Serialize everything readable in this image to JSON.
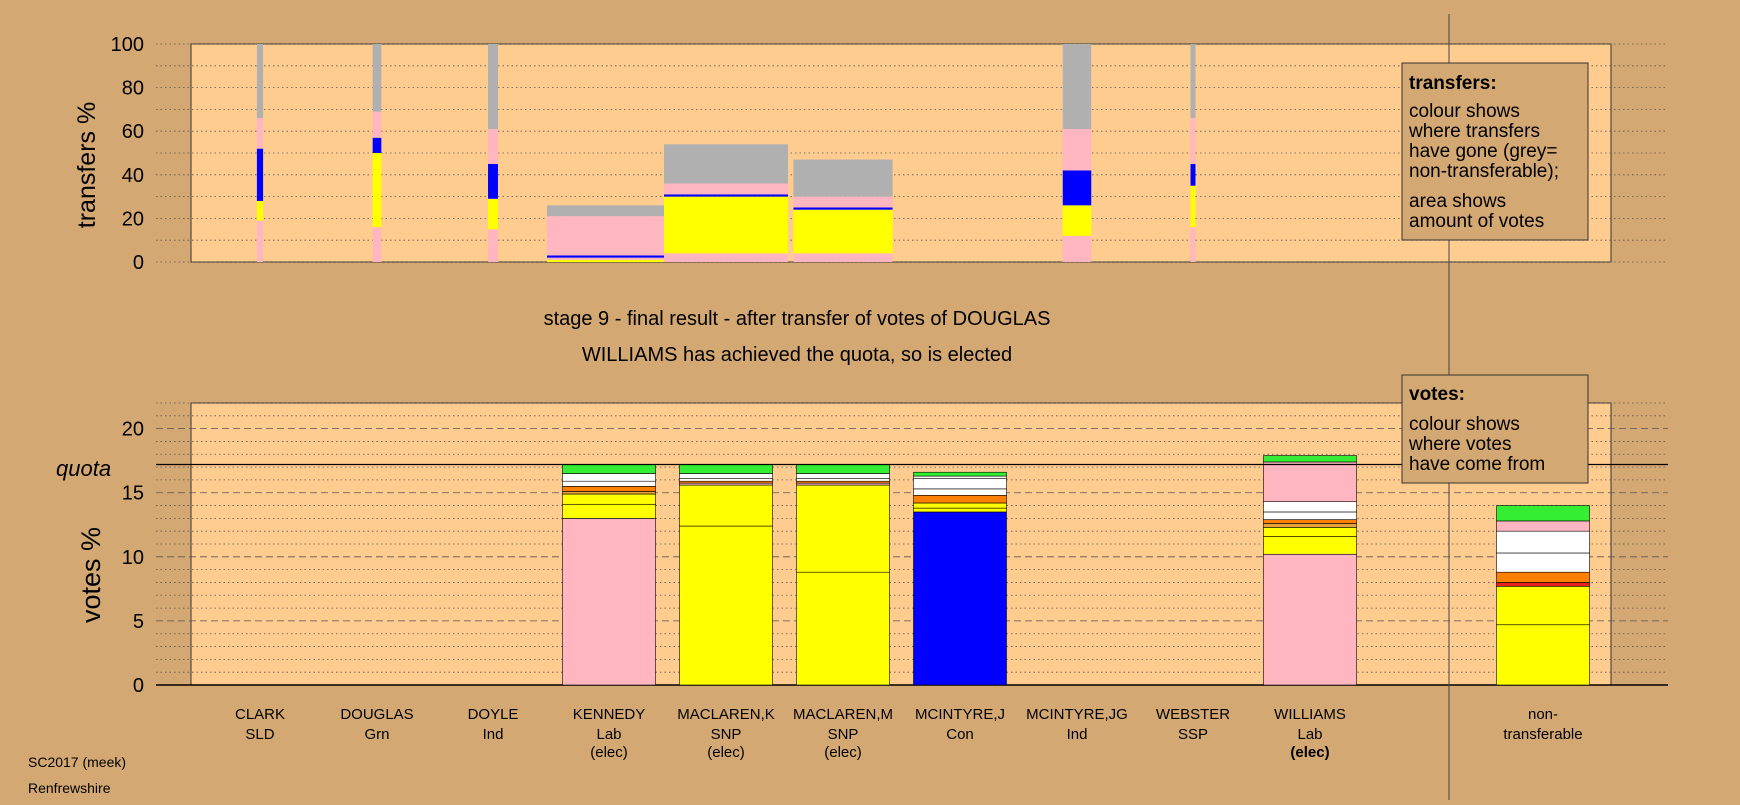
{
  "chart_data": [
    {
      "type": "bar",
      "ylabel": "transfers %",
      "ylim": [
        0,
        100
      ],
      "yticks": [
        0,
        20,
        40,
        60,
        80,
        100
      ],
      "grid": true,
      "categories": [
        "CLARK",
        "DOUGLAS",
        "DOYLE",
        "KENNEDY",
        "MACLAREN,K",
        "MACLAREN,M",
        "MCINTYRE,J",
        "MCINTYRE,JG",
        "WEBSTER",
        "WILLIAMS"
      ],
      "bars": [
        {
          "candidate": "CLARK",
          "width_share": 0.05,
          "segments": [
            {
              "color": "#ffb6c1",
              "to": 19
            },
            {
              "color": "#ffff00",
              "to": 28
            },
            {
              "color": "#0000ff",
              "to": 52
            },
            {
              "color": "#ffb6c1",
              "to": 66
            },
            {
              "color": "#b0b0b0",
              "to": 100
            }
          ]
        },
        {
          "candidate": "DOUGLAS",
          "width_share": 0.07,
          "segments": [
            {
              "color": "#ffb6c1",
              "to": 16
            },
            {
              "color": "#ffff00",
              "to": 50
            },
            {
              "color": "#0000ff",
              "to": 57
            },
            {
              "color": "#ffb6c1",
              "to": 69
            },
            {
              "color": "#b0b0b0",
              "to": 100
            }
          ]
        },
        {
          "candidate": "DOYLE",
          "width_share": 0.08,
          "segments": [
            {
              "color": "#ffb6c1",
              "to": 15
            },
            {
              "color": "#ffff00",
              "to": 29
            },
            {
              "color": "#0000ff",
              "to": 45
            },
            {
              "color": "#ffb6c1",
              "to": 61
            },
            {
              "color": "#b0b0b0",
              "to": 100
            }
          ]
        },
        {
          "candidate": "KENNEDY",
          "width_share": 1.0,
          "segments": [
            {
              "color": "#ffff00",
              "to": 1
            },
            {
              "color": "#ffb6c1",
              "to": 2
            },
            {
              "color": "#0000ff",
              "to": 3
            },
            {
              "color": "#ffb6c1",
              "to": 21
            },
            {
              "color": "#b0b0b0",
              "to": 26
            }
          ]
        },
        {
          "candidate": "MACLAREN,K",
          "width_share": 1.0,
          "segments": [
            {
              "color": "#ffb6c1",
              "to": 4
            },
            {
              "color": "#ffff00",
              "to": 30
            },
            {
              "color": "#0000ff",
              "to": 31
            },
            {
              "color": "#ffb6c1",
              "to": 36
            },
            {
              "color": "#b0b0b0",
              "to": 54
            }
          ]
        },
        {
          "candidate": "MACLAREN,M",
          "width_share": 0.8,
          "segments": [
            {
              "color": "#ffb6c1",
              "to": 4
            },
            {
              "color": "#ffff00",
              "to": 24
            },
            {
              "color": "#0000ff",
              "to": 25
            },
            {
              "color": "#ffb6c1",
              "to": 30
            },
            {
              "color": "#b0b0b0",
              "to": 47
            }
          ]
        },
        {
          "candidate": "MCINTYRE,J",
          "width_share": 0.0,
          "segments": []
        },
        {
          "candidate": "MCINTYRE,JG",
          "width_share": 0.23,
          "segments": [
            {
              "color": "#ffb6c1",
              "to": 12
            },
            {
              "color": "#ffff00",
              "to": 26
            },
            {
              "color": "#0000ff",
              "to": 42
            },
            {
              "color": "#ffb6c1",
              "to": 61
            },
            {
              "color": "#b0b0b0",
              "to": 100
            }
          ]
        },
        {
          "candidate": "WEBSTER",
          "width_share": 0.04,
          "segments": [
            {
              "color": "#ffb6c1",
              "to": 16
            },
            {
              "color": "#ffff00",
              "to": 35
            },
            {
              "color": "#0000ff",
              "to": 45
            },
            {
              "color": "#ffb6c1",
              "to": 66
            },
            {
              "color": "#b0b0b0",
              "to": 100
            }
          ]
        },
        {
          "candidate": "WILLIAMS",
          "width_share": 0.0,
          "segments": []
        }
      ]
    },
    {
      "type": "bar",
      "ylabel": "votes %",
      "ylim": [
        0,
        22
      ],
      "yticks": [
        0,
        5,
        10,
        15,
        20
      ],
      "quota": 17.2,
      "grid": true,
      "bars": [
        {
          "candidate": "CLARK",
          "party": "SLD",
          "status": "",
          "segments": []
        },
        {
          "candidate": "DOUGLAS",
          "party": "Grn",
          "status": "",
          "segments": []
        },
        {
          "candidate": "DOYLE",
          "party": "Ind",
          "status": "",
          "segments": []
        },
        {
          "candidate": "KENNEDY",
          "party": "Lab",
          "status": "(elec)",
          "segments": [
            {
              "color": "#ffb6c1",
              "to": 13.0
            },
            {
              "color": "#ffff00",
              "to": 14.1
            },
            {
              "color": "#ffff00",
              "to": 14.9
            },
            {
              "color": "#e6a23c",
              "to": 15.1
            },
            {
              "color": "#ff8000",
              "to": 15.5
            },
            {
              "color": "#ffffff",
              "to": 15.9
            },
            {
              "color": "#ffffff",
              "to": 16.5
            },
            {
              "color": "#33ee33",
              "to": 17.2
            }
          ]
        },
        {
          "candidate": "MACLAREN,K",
          "party": "SNP",
          "status": "(elec)",
          "segments": [
            {
              "color": "#ffff00",
              "to": 12.4
            },
            {
              "color": "#ffff00",
              "to": 15.6
            },
            {
              "color": "#ffb6c1",
              "to": 15.75
            },
            {
              "color": "#ff8000",
              "to": 15.9
            },
            {
              "color": "#ffffff",
              "to": 16.1
            },
            {
              "color": "#ffffff",
              "to": 16.5
            },
            {
              "color": "#33ee33",
              "to": 17.2
            }
          ]
        },
        {
          "candidate": "MACLAREN,M",
          "party": "SNP",
          "status": "(elec)",
          "segments": [
            {
              "color": "#ffff00",
              "to": 8.8
            },
            {
              "color": "#ffff00",
              "to": 15.6
            },
            {
              "color": "#ffb6c1",
              "to": 15.75
            },
            {
              "color": "#ff8000",
              "to": 15.9
            },
            {
              "color": "#ffffff",
              "to": 16.1
            },
            {
              "color": "#ffffff",
              "to": 16.5
            },
            {
              "color": "#33ee33",
              "to": 17.2
            }
          ]
        },
        {
          "candidate": "MCINTYRE,J",
          "party": "Con",
          "status": "",
          "segments": [
            {
              "color": "#0000ff",
              "to": 13.5
            },
            {
              "color": "#ffff00",
              "to": 13.8
            },
            {
              "color": "#ffff00",
              "to": 14.2
            },
            {
              "color": "#ff8000",
              "to": 14.8
            },
            {
              "color": "#ffffff",
              "to": 15.3
            },
            {
              "color": "#ffffff",
              "to": 16.1
            },
            {
              "color": "#ffffff",
              "to": 16.3
            },
            {
              "color": "#33ee33",
              "to": 16.6
            }
          ]
        },
        {
          "candidate": "MCINTYRE,JG",
          "party": "Ind",
          "status": "",
          "segments": []
        },
        {
          "candidate": "WEBSTER",
          "party": "SSP",
          "status": "",
          "segments": []
        },
        {
          "candidate": "WILLIAMS",
          "party": "Lab",
          "status": "(elec)",
          "segments": [
            {
              "color": "#ffb6c1",
              "to": 10.2
            },
            {
              "color": "#ffff00",
              "to": 11.6
            },
            {
              "color": "#ffff00",
              "to": 12.3
            },
            {
              "color": "#e6a23c",
              "to": 12.6
            },
            {
              "color": "#ff8000",
              "to": 12.9
            },
            {
              "color": "#ffffff",
              "to": 13.5
            },
            {
              "color": "#ffffff",
              "to": 14.3
            },
            {
              "color": "#ffb6c1",
              "to": 17.4
            },
            {
              "color": "#33ee33",
              "to": 17.9
            }
          ]
        },
        {
          "candidate": "non-",
          "party": "transferable",
          "status": "",
          "segments": [
            {
              "color": "#ffff00",
              "to": 4.7
            },
            {
              "color": "#ffff00",
              "to": 7.7
            },
            {
              "color": "#e62020",
              "to": 8.0
            },
            {
              "color": "#ff8000",
              "to": 8.8
            },
            {
              "color": "#ffffff",
              "to": 10.3
            },
            {
              "color": "#ffffff",
              "to": 12.0
            },
            {
              "color": "#ffb6c1",
              "to": 12.8
            },
            {
              "color": "#33ee33",
              "to": 14.0
            }
          ]
        }
      ]
    }
  ],
  "top_chart": {
    "ylabel": "transfers %",
    "legend_title": "transfers:",
    "legend_line1": [
      "colour shows",
      "where transfers",
      "have gone (grey=",
      "non-transferable);"
    ],
    "legend_line2": [
      "area shows",
      "amount of votes"
    ]
  },
  "headline": {
    "line1": "stage 9 - final result - after transfer of votes of DOUGLAS",
    "line2": "WILLIAMS has achieved the quota, so is elected"
  },
  "bottom_chart": {
    "ylabel": "votes %",
    "quota_label": "quota",
    "legend_title": "votes:",
    "legend_lines": [
      "colour shows",
      "where votes",
      "have come from"
    ]
  },
  "footer": {
    "election": "SC2017 (meek)",
    "area": "Renfrewshire"
  },
  "colors": {
    "background": "#d4a872",
    "plot_area": "#ffcc90",
    "grey": "#b0b0b0"
  }
}
